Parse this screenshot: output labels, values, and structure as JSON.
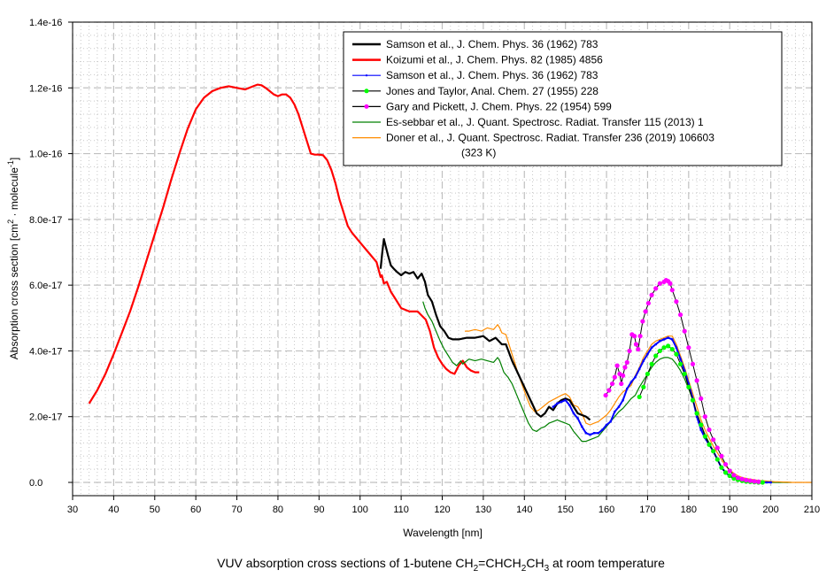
{
  "chart_data": {
    "type": "line",
    "title": "VUV absorption cross sections of 1-butene CH2=CHCH2CH3 at room temperature",
    "caption": {
      "prefix": "VUV absorption cross sections of 1-butene CH",
      "sub1": "2",
      "mid1": "=CHCH",
      "sub2": "2",
      "mid2": "CH",
      "sub3": "3",
      "suffix": " at room temperature"
    },
    "xlabel": "Wavelength [nm]",
    "ylabel": {
      "main": "Absorption cross section [cm",
      "sup1": "2",
      "mid": " · molecule",
      "sup2": "-1",
      "end": "]"
    },
    "xlim": [
      30,
      210
    ],
    "ylim": [
      -2e-18,
      1.4e-16
    ],
    "x_ticks": [
      "30",
      "40",
      "50",
      "60",
      "70",
      "80",
      "90",
      "100",
      "110",
      "120",
      "130",
      "140",
      "150",
      "160",
      "170",
      "180",
      "190",
      "200",
      "210"
    ],
    "y_ticks": [
      "0.0",
      "2.0e-17",
      "4.0e-17",
      "6.0e-17",
      "8.0e-17",
      "1.0e-16",
      "1.2e-16",
      "1.4e-16"
    ],
    "grid": true,
    "legend_position": "top-right",
    "y_unit_scale": 1e-17,
    "series": [
      {
        "name": "Samson et al., J. Chem. Phys. 36 (1962) 783",
        "color": "#000000",
        "width": 2.2,
        "marker": "none",
        "x": [
          105.0,
          105.4,
          105.8,
          106.2,
          106.8,
          107.5,
          108.2,
          109,
          110,
          111,
          112,
          113,
          114,
          115,
          115.8,
          116.5,
          117.5,
          118.5,
          119.5,
          120.5,
          121.5,
          122.5,
          124,
          126,
          128,
          130,
          131.5,
          133,
          134.5,
          135.5,
          137,
          138.5,
          140,
          141.5,
          143,
          144,
          145,
          146,
          147,
          148,
          149,
          150,
          151,
          152,
          153,
          154,
          155,
          156
        ],
        "y": [
          6.5,
          7.0,
          7.4,
          7.2,
          6.9,
          6.6,
          6.5,
          6.4,
          6.3,
          6.4,
          6.35,
          6.4,
          6.2,
          6.35,
          6.1,
          5.7,
          5.5,
          5.1,
          4.75,
          4.6,
          4.4,
          4.35,
          4.35,
          4.4,
          4.4,
          4.45,
          4.3,
          4.4,
          4.2,
          4.2,
          3.7,
          3.3,
          2.9,
          2.5,
          2.1,
          2.0,
          2.1,
          2.3,
          2.2,
          2.4,
          2.5,
          2.55,
          2.5,
          2.3,
          2.1,
          2.05,
          2.0,
          1.9
        ]
      },
      {
        "name": "Koizumi et al., J. Chem. Phys. 82 (1985) 4856",
        "color": "#ff0000",
        "width": 2.2,
        "marker": "none",
        "x": [
          34,
          36,
          38,
          40,
          42,
          44,
          46,
          48,
          50,
          52,
          54,
          56,
          58,
          60,
          62,
          64,
          66,
          68,
          70,
          72,
          74,
          75,
          76,
          77,
          78,
          79,
          80,
          81,
          82,
          83,
          84,
          85,
          86,
          87,
          88,
          89,
          90,
          91,
          92,
          93,
          94,
          95,
          96,
          97,
          98,
          100,
          102,
          104,
          105,
          105.3,
          105.8,
          106.5,
          107.5,
          108.5,
          110,
          112,
          114,
          116,
          117,
          118,
          119,
          120,
          121,
          122,
          123,
          124,
          125,
          126,
          127,
          128,
          129
        ],
        "y": [
          2.4,
          2.8,
          3.3,
          3.9,
          4.55,
          5.2,
          5.95,
          6.75,
          7.55,
          8.35,
          9.2,
          10.0,
          10.75,
          11.35,
          11.7,
          11.9,
          12.0,
          12.05,
          12.0,
          11.95,
          12.05,
          12.1,
          12.08,
          12.0,
          11.9,
          11.8,
          11.75,
          11.8,
          11.8,
          11.7,
          11.5,
          11.2,
          10.8,
          10.4,
          10.0,
          9.97,
          9.97,
          9.95,
          9.8,
          9.5,
          9.1,
          8.6,
          8.2,
          7.8,
          7.6,
          7.3,
          7.0,
          6.7,
          6.25,
          6.3,
          6.05,
          6.1,
          5.8,
          5.6,
          5.3,
          5.2,
          5.2,
          4.95,
          4.6,
          4.1,
          3.8,
          3.6,
          3.45,
          3.35,
          3.3,
          3.55,
          3.7,
          3.5,
          3.4,
          3.35,
          3.35
        ]
      },
      {
        "name": "Samson et al., J. Chem. Phys. 36 (1962) 783",
        "color": "#0000ff",
        "width": 2,
        "marker": "dot",
        "x": [
          147,
          148,
          149,
          150,
          151,
          152,
          153,
          154,
          155,
          156,
          157,
          158,
          159,
          160,
          161,
          162,
          163,
          164,
          165,
          166,
          167,
          168,
          169,
          170,
          171,
          172,
          173,
          174,
          175,
          176,
          177,
          178,
          179,
          180,
          181,
          182,
          183,
          184,
          185,
          186,
          187,
          188,
          189,
          190,
          191,
          192,
          193,
          194,
          195,
          196,
          197,
          198,
          199,
          200
        ],
        "y": [
          2.3,
          2.4,
          2.45,
          2.5,
          2.35,
          2.1,
          1.95,
          1.7,
          1.5,
          1.45,
          1.5,
          1.5,
          1.6,
          1.75,
          1.85,
          2.15,
          2.3,
          2.5,
          2.85,
          3.05,
          3.2,
          3.45,
          3.7,
          3.9,
          4.1,
          4.2,
          4.3,
          4.35,
          4.4,
          4.35,
          4.1,
          3.75,
          3.4,
          3.0,
          2.55,
          2.0,
          1.6,
          1.35,
          1.15,
          0.95,
          0.7,
          0.45,
          0.3,
          0.2,
          0.12,
          0.08,
          0.05,
          0.03,
          0.02,
          0.01,
          0.01,
          0.0,
          0.0,
          0.0
        ]
      },
      {
        "name": "Jones and Taylor, Anal. Chem. 27 (1955) 228",
        "color": "#000000",
        "width": 1,
        "marker": "circle",
        "marker_color": "#00ff00",
        "x": [
          168,
          169,
          170,
          171,
          172,
          173,
          174,
          175,
          176,
          177,
          178,
          179,
          180,
          181,
          182,
          183,
          184,
          185,
          186,
          187,
          188,
          189,
          190,
          191,
          192,
          193,
          194,
          195,
          196,
          197,
          198
        ],
        "y": [
          2.6,
          2.9,
          3.3,
          3.6,
          3.85,
          4.0,
          4.1,
          4.15,
          4.05,
          3.9,
          3.6,
          3.3,
          2.9,
          2.5,
          2.1,
          1.75,
          1.4,
          1.15,
          0.95,
          0.7,
          0.45,
          0.3,
          0.2,
          0.12,
          0.08,
          0.05,
          0.03,
          0.02,
          0.01,
          0.0,
          0.0
        ]
      },
      {
        "name": "Gary and Pickett, J. Chem. Phys. 22 (1954) 599",
        "color": "#000000",
        "width": 1,
        "marker": "circle",
        "marker_color": "#ff00ff",
        "x": [
          159.8,
          160.6,
          161.4,
          162.0,
          162.6,
          163.2,
          163.6,
          164.0,
          164.5,
          165.0,
          165.6,
          166.2,
          166.8,
          167.2,
          167.7,
          168.2,
          168.8,
          169.5,
          170.2,
          171,
          172,
          173,
          174,
          174.5,
          175,
          175.5,
          176,
          177,
          178,
          179,
          180,
          181,
          182,
          183,
          184,
          185,
          186,
          187,
          188,
          189,
          190,
          191,
          192,
          193,
          194,
          195,
          196,
          197
        ],
        "y": [
          2.65,
          2.8,
          3.0,
          3.2,
          3.55,
          3.3,
          3.0,
          3.25,
          3.5,
          3.65,
          4.0,
          4.5,
          4.45,
          4.2,
          4.05,
          4.45,
          4.9,
          5.2,
          5.45,
          5.7,
          5.9,
          6.05,
          6.1,
          6.15,
          6.12,
          6.05,
          5.85,
          5.5,
          5.1,
          4.6,
          4.1,
          3.6,
          3.1,
          2.55,
          2.0,
          1.6,
          1.3,
          1.05,
          0.8,
          0.55,
          0.35,
          0.22,
          0.14,
          0.1,
          0.07,
          0.05,
          0.03,
          0.02
        ]
      },
      {
        "name": "Es-sebbar et al., J. Quant. Spectrosc. Radiat. Transfer 115 (2013) 1",
        "color": "#008000",
        "width": 1.2,
        "marker": "none",
        "x": [
          115.3,
          115.8,
          116.5,
          117.5,
          118.5,
          119.5,
          120.5,
          121.5,
          122.5,
          123.5,
          124.5,
          125,
          125.5,
          126.5,
          128,
          129.5,
          131,
          132.5,
          133.5,
          134,
          135,
          136,
          137,
          138,
          139,
          140,
          141,
          142,
          143,
          144,
          145,
          146,
          147,
          148,
          149,
          150,
          151,
          152,
          153,
          154,
          155,
          156,
          157,
          158,
          159,
          160,
          161,
          162,
          163,
          164,
          165,
          166,
          167,
          168,
          169,
          170,
          171,
          172,
          173,
          174,
          175,
          176,
          177,
          178,
          179,
          180,
          181,
          182,
          183,
          184,
          185,
          186,
          187,
          188,
          189,
          190,
          191,
          192,
          193,
          194,
          195,
          196,
          197,
          198,
          199,
          200,
          201,
          202,
          203,
          204,
          205
        ],
        "y": [
          5.5,
          5.3,
          5.1,
          4.9,
          4.6,
          4.3,
          4.05,
          3.85,
          3.65,
          3.55,
          3.7,
          3.6,
          3.65,
          3.75,
          3.7,
          3.75,
          3.7,
          3.65,
          3.8,
          3.7,
          3.35,
          3.2,
          3.0,
          2.7,
          2.4,
          2.1,
          1.8,
          1.6,
          1.55,
          1.65,
          1.7,
          1.8,
          1.85,
          1.9,
          1.85,
          1.8,
          1.75,
          1.55,
          1.4,
          1.25,
          1.25,
          1.3,
          1.35,
          1.4,
          1.55,
          1.7,
          1.85,
          2.0,
          2.15,
          2.25,
          2.4,
          2.55,
          2.65,
          2.9,
          3.1,
          3.3,
          3.5,
          3.65,
          3.75,
          3.8,
          3.8,
          3.75,
          3.6,
          3.4,
          3.15,
          2.85,
          2.5,
          2.1,
          1.75,
          1.45,
          1.2,
          0.95,
          0.7,
          0.45,
          0.3,
          0.2,
          0.12,
          0.08,
          0.05,
          0.03,
          0.02,
          0.01,
          0.01,
          0.0,
          0.0,
          0.0,
          0.0,
          0.0,
          0.0,
          0.0,
          0.0
        ]
      },
      {
        "name": "Doner et al., J. Quant. Spectrosc. Radiat. Transfer 236 (2019) 106603",
        "name_line2": "(323 K)",
        "color": "#ff8c00",
        "width": 1.2,
        "marker": "none",
        "x": [
          125.5,
          126.5,
          128,
          129.5,
          131,
          132.5,
          133.5,
          134,
          134.5,
          135.5,
          136.5,
          137.5,
          138.5,
          139.5,
          140.5,
          141.5,
          142.5,
          143.5,
          144.5,
          146,
          147.5,
          149,
          150,
          151,
          152,
          153,
          154,
          155,
          156,
          157,
          158,
          159,
          160,
          161,
          162,
          163,
          164,
          165,
          166,
          167,
          168,
          169,
          170,
          171,
          172,
          173,
          174,
          175,
          176,
          177,
          178,
          179,
          180,
          181,
          182,
          183,
          184,
          185,
          186,
          187,
          188,
          189,
          190,
          191,
          192,
          193,
          194,
          195,
          196,
          197,
          198,
          199,
          200,
          201,
          202,
          203,
          204,
          205,
          206,
          207,
          208,
          209,
          210
        ],
        "y": [
          4.6,
          4.6,
          4.65,
          4.6,
          4.7,
          4.65,
          4.8,
          4.7,
          4.55,
          4.5,
          4.1,
          3.7,
          3.3,
          2.95,
          2.6,
          2.3,
          2.15,
          2.2,
          2.3,
          2.45,
          2.55,
          2.65,
          2.7,
          2.6,
          2.35,
          2.3,
          2.1,
          1.8,
          1.75,
          1.8,
          1.85,
          1.95,
          2.05,
          2.2,
          2.4,
          2.6,
          2.75,
          2.85,
          2.95,
          3.25,
          3.5,
          3.8,
          4.0,
          4.2,
          4.3,
          4.35,
          4.4,
          4.45,
          4.45,
          4.2,
          3.85,
          3.5,
          3.1,
          2.7,
          2.3,
          1.9,
          1.6,
          1.35,
          1.1,
          0.9,
          0.7,
          0.5,
          0.38,
          0.28,
          0.2,
          0.15,
          0.12,
          0.1,
          0.08,
          0.06,
          0.05,
          0.04,
          0.03,
          0.02,
          0.02,
          0.01,
          0.01,
          0.0,
          0.0,
          0.0,
          0.0,
          0.0,
          0.0
        ]
      }
    ]
  }
}
